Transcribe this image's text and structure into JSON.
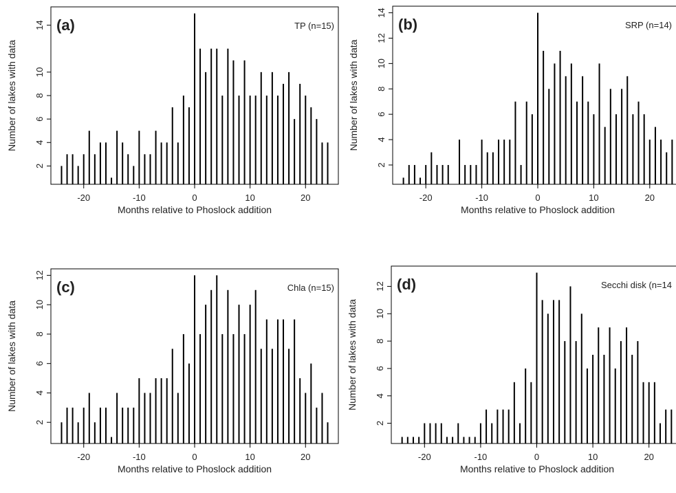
{
  "chart_data": [
    {
      "type": "bar",
      "panel_label": "(a)",
      "annotation": "TP (n=15)",
      "ylabel": "Number of lakes with data",
      "xlabel": "Months relative to Phoslock addition",
      "color": "#000000",
      "x": [
        -24,
        -23,
        -22,
        -21,
        -20,
        -19,
        -18,
        -17,
        -16,
        -15,
        -14,
        -13,
        -12,
        -11,
        -10,
        -9,
        -8,
        -7,
        -6,
        -5,
        -4,
        -3,
        -2,
        -1,
        0,
        1,
        2,
        3,
        4,
        5,
        6,
        7,
        8,
        9,
        10,
        11,
        12,
        13,
        14,
        15,
        16,
        17,
        18,
        19,
        20,
        21,
        22,
        23,
        24
      ],
      "values": [
        2,
        3,
        3,
        2,
        3,
        5,
        3,
        4,
        4,
        1,
        5,
        4,
        3,
        2,
        5,
        3,
        3,
        5,
        4,
        4,
        7,
        4,
        8,
        7,
        15,
        12,
        10,
        12,
        12,
        8,
        12,
        11,
        8,
        11,
        8,
        8,
        10,
        8,
        10,
        8,
        9,
        10,
        6,
        9,
        8,
        7,
        6,
        4,
        4
      ],
      "xlim": [
        -25.92,
        25.92
      ],
      "xticks": [
        -20,
        -10,
        0,
        10,
        20
      ],
      "ylim": [
        0.44,
        15.56
      ],
      "yticks": [
        2,
        4,
        6,
        8,
        10,
        14
      ]
    },
    {
      "type": "bar",
      "panel_label": "(b)",
      "annotation": "SRP (n=14)",
      "ylabel": "Number of lakes with data",
      "xlabel": "Months relative to Phoslock addition",
      "color": "#000000",
      "x": [
        -24,
        -23,
        -22,
        -21,
        -20,
        -19,
        -18,
        -17,
        -16,
        -15,
        -14,
        -13,
        -12,
        -11,
        -10,
        -9,
        -8,
        -7,
        -6,
        -5,
        -4,
        -3,
        -2,
        -1,
        0,
        1,
        2,
        3,
        4,
        5,
        6,
        7,
        8,
        9,
        10,
        11,
        12,
        13,
        14,
        15,
        16,
        17,
        18,
        19,
        20,
        21,
        22,
        23,
        24
      ],
      "values": [
        1,
        2,
        2,
        1,
        2,
        3,
        2,
        2,
        2,
        null,
        4,
        2,
        2,
        2,
        4,
        3,
        3,
        4,
        4,
        4,
        7,
        2,
        7,
        6,
        14,
        11,
        8,
        10,
        11,
        9,
        10,
        7,
        9,
        7,
        6,
        10,
        5,
        8,
        6,
        8,
        9,
        6,
        7,
        6,
        4,
        5,
        4,
        3,
        4
      ],
      "xlim": [
        -25.92,
        25.92
      ],
      "xticks": [
        -20,
        -10,
        0,
        10,
        20
      ],
      "ylim": [
        0.48,
        14.52
      ],
      "yticks": [
        2,
        4,
        6,
        8,
        10,
        12,
        14
      ]
    },
    {
      "type": "bar",
      "panel_label": "(c)",
      "annotation": "Chla (n=15)",
      "ylabel": "Number of lakes with data",
      "xlabel": "Months relative to Phoslock addition",
      "color": "#000000",
      "x": [
        -24,
        -23,
        -22,
        -21,
        -20,
        -19,
        -18,
        -17,
        -16,
        -15,
        -14,
        -13,
        -12,
        -11,
        -10,
        -9,
        -8,
        -7,
        -6,
        -5,
        -4,
        -3,
        -2,
        -1,
        0,
        1,
        2,
        3,
        4,
        5,
        6,
        7,
        8,
        9,
        10,
        11,
        12,
        13,
        14,
        15,
        16,
        17,
        18,
        19,
        20,
        21,
        22,
        23,
        24
      ],
      "values": [
        2,
        3,
        3,
        2,
        3,
        4,
        2,
        3,
        3,
        1,
        4,
        3,
        3,
        3,
        5,
        4,
        4,
        5,
        5,
        5,
        7,
        4,
        8,
        6,
        12,
        8,
        10,
        11,
        12,
        8,
        11,
        8,
        10,
        8,
        10,
        11,
        7,
        9,
        7,
        9,
        9,
        7,
        9,
        5,
        4,
        6,
        3,
        4,
        2
      ],
      "xlim": [
        -25.92,
        25.92
      ],
      "xticks": [
        -20,
        -10,
        0,
        10,
        20
      ],
      "ylim": [
        0.56,
        12.44
      ],
      "yticks": [
        2,
        4,
        6,
        8,
        10,
        12
      ]
    },
    {
      "type": "bar",
      "panel_label": "(d)",
      "annotation": "Secchi disk (n=14",
      "ylabel": "Number of lakes with data",
      "xlabel": "Months relative to Phoslock addition",
      "color": "#000000",
      "x": [
        -24,
        -23,
        -22,
        -21,
        -20,
        -19,
        -18,
        -17,
        -16,
        -15,
        -14,
        -13,
        -12,
        -11,
        -10,
        -9,
        -8,
        -7,
        -6,
        -5,
        -4,
        -3,
        -2,
        -1,
        0,
        1,
        2,
        3,
        4,
        5,
        6,
        7,
        8,
        9,
        10,
        11,
        12,
        13,
        14,
        15,
        16,
        17,
        18,
        19,
        20,
        21,
        22,
        23,
        24
      ],
      "values": [
        1,
        1,
        1,
        1,
        2,
        2,
        2,
        2,
        1,
        1,
        2,
        1,
        1,
        1,
        2,
        3,
        2,
        3,
        3,
        3,
        5,
        2,
        6,
        5,
        13,
        11,
        10,
        11,
        11,
        8,
        12,
        8,
        10,
        6,
        7,
        9,
        7,
        9,
        6,
        8,
        9,
        7,
        8,
        5,
        5,
        5,
        2,
        3,
        3
      ],
      "xlim": [
        -25.92,
        25.92
      ],
      "xticks": [
        -20,
        -10,
        0,
        10,
        20
      ],
      "ylim": [
        0.52,
        13.48
      ],
      "yticks": [
        2,
        4,
        6,
        8,
        10,
        12
      ]
    }
  ]
}
